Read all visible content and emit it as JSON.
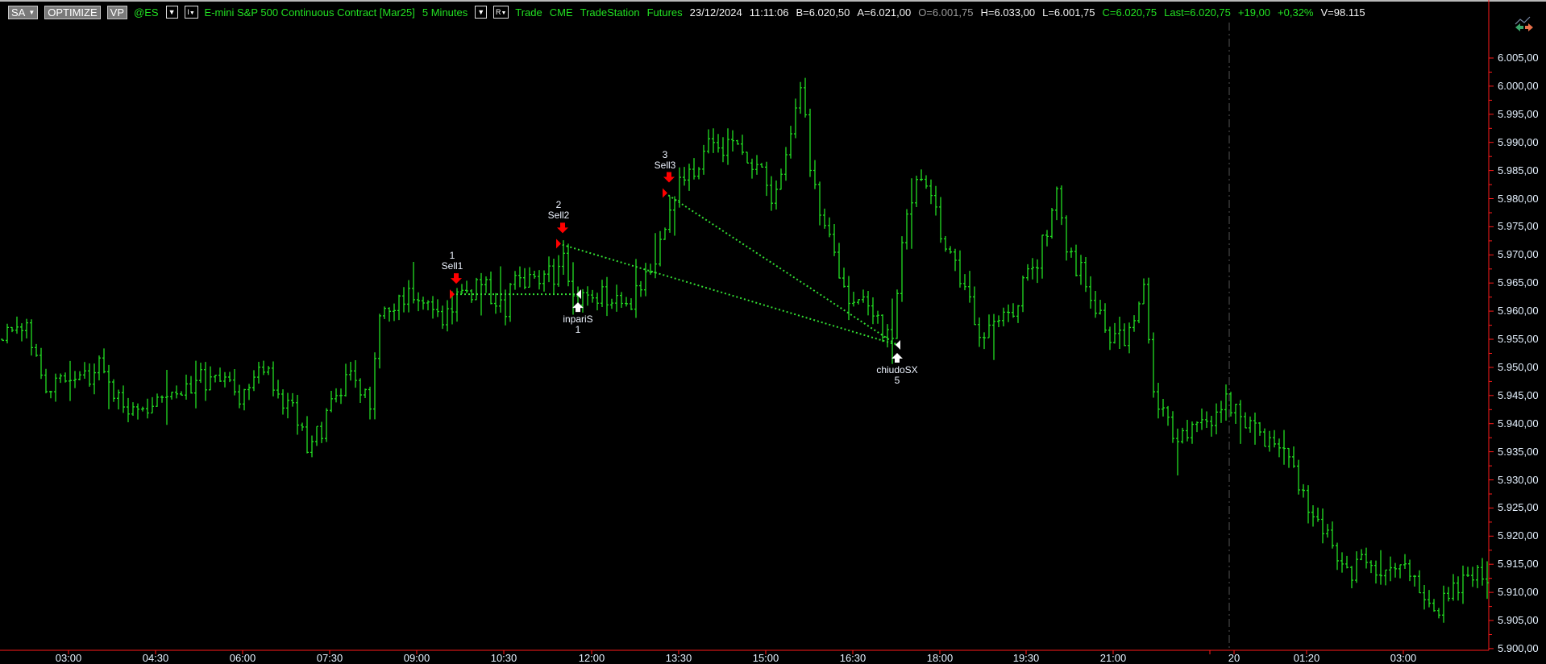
{
  "header": {
    "sa_label": "SA",
    "optimize_label": "OPTIMIZE",
    "vp_label": "VP",
    "symbol": "@ES",
    "interval_dropdown": "I",
    "description": "E-mini S&P 500 Continuous Contract [Mar25]",
    "interval": "5 Minutes",
    "range_dropdown": "R",
    "data_type": "Trade",
    "exchange": "CME",
    "data_source": "TradeStation",
    "category": "Futures",
    "date": "23/12/2024",
    "time": "11:11:06",
    "bid": "B=6.020,50",
    "ask": "A=6.021,00",
    "open": "O=6.001,75",
    "high": "H=6.033,00",
    "low": "L=6.001,75",
    "close": "C=6.020,75",
    "last": "Last=6.020,75",
    "net_change": "+19,00",
    "pct_change": "+0,32%",
    "volume": "V=98.115"
  },
  "colors": {
    "bars": "#22dd22",
    "axis": "#ff1a1a",
    "entry": "#ff0000",
    "exit": "#ffffff",
    "trade_line": "#33dd33",
    "background": "#000000"
  },
  "chart_data": {
    "type": "ohlc-bar",
    "ylim": [
      5900,
      6007
    ],
    "y_ticks": [
      "6.005,00",
      "6.000,00",
      "5.995,00",
      "5.990,00",
      "5.985,00",
      "5.980,00",
      "5.975,00",
      "5.970,00",
      "5.965,00",
      "5.960,00",
      "5.955,00",
      "5.950,00",
      "5.945,00",
      "5.940,00",
      "5.935,00",
      "5.930,00",
      "5.925,00",
      "5.920,00",
      "5.915,00",
      "5.910,00",
      "5.905,00",
      "5.900,00"
    ],
    "x_ticks": [
      "03:00",
      "04:30",
      "06:00",
      "07:30",
      "09:00",
      "10:30",
      "12:00",
      "13:30",
      "15:00",
      "16:30",
      "18:00",
      "19:30",
      "21:00",
      "20",
      "01:20",
      "03:00"
    ],
    "price_path": [
      [
        0,
        5955
      ],
      [
        5,
        5958
      ],
      [
        9,
        5947
      ],
      [
        20,
        5950
      ],
      [
        27,
        5941
      ],
      [
        35,
        5945
      ],
      [
        43,
        5949
      ],
      [
        48,
        5945
      ],
      [
        54,
        5950
      ],
      [
        61,
        5940
      ],
      [
        63,
        5937
      ],
      [
        69,
        5943
      ],
      [
        72,
        5950
      ],
      [
        76,
        5943
      ],
      [
        78,
        5960
      ],
      [
        86,
        5962
      ],
      [
        90,
        5958
      ],
      [
        94,
        5963
      ],
      [
        100,
        5965
      ],
      [
        104,
        5960
      ],
      [
        106,
        5965
      ],
      [
        114,
        5966
      ],
      [
        116,
        5971
      ],
      [
        118,
        5962
      ],
      [
        122,
        5964
      ],
      [
        130,
        5961
      ],
      [
        134,
        5968
      ],
      [
        139,
        5981
      ],
      [
        143,
        5985
      ],
      [
        147,
        5990
      ],
      [
        151,
        5989
      ],
      [
        157,
        5985
      ],
      [
        159,
        5980
      ],
      [
        163,
        5990
      ],
      [
        165,
        6000
      ],
      [
        167,
        5986
      ],
      [
        171,
        5972
      ],
      [
        175,
        5963
      ],
      [
        179,
        5960
      ],
      [
        184,
        5955
      ],
      [
        187,
        5979
      ],
      [
        190,
        5984
      ],
      [
        194,
        5975
      ],
      [
        199,
        5965
      ],
      [
        202,
        5955
      ],
      [
        206,
        5959
      ],
      [
        210,
        5962
      ],
      [
        214,
        5969
      ],
      [
        218,
        5980
      ],
      [
        220,
        5972
      ],
      [
        224,
        5965
      ],
      [
        230,
        5955
      ],
      [
        234,
        5958
      ],
      [
        236,
        5964
      ],
      [
        238,
        5946
      ],
      [
        242,
        5937
      ],
      [
        246,
        5940
      ],
      [
        253,
        5943
      ],
      [
        257,
        5940
      ],
      [
        263,
        5937
      ],
      [
        267,
        5933
      ],
      [
        270,
        5925
      ],
      [
        273,
        5922
      ],
      [
        277,
        5915
      ],
      [
        285,
        5915
      ],
      [
        289,
        5915
      ],
      [
        294,
        5910
      ],
      [
        297,
        5907
      ],
      [
        301,
        5912
      ],
      [
        307,
        5913
      ]
    ],
    "trades": [
      {
        "id": "1",
        "label": "Sell1",
        "type": "entry",
        "bar": 93,
        "price": 5963
      },
      {
        "id": "2",
        "label": "Sell2",
        "type": "entry",
        "bar": 115,
        "price": 5972
      },
      {
        "id": "3",
        "label": "Sell3",
        "type": "entry",
        "bar": 137,
        "price": 5981
      },
      {
        "id": "1",
        "label": "inpariS",
        "type": "exit",
        "bar": 119,
        "price": 5963
      },
      {
        "id": "5",
        "label": "chiudoSX",
        "type": "exit",
        "bar": 185,
        "price": 5954
      }
    ],
    "trade_links": [
      [
        0,
        3
      ],
      [
        1,
        4
      ],
      [
        2,
        4
      ]
    ],
    "session_break_label": "20"
  }
}
